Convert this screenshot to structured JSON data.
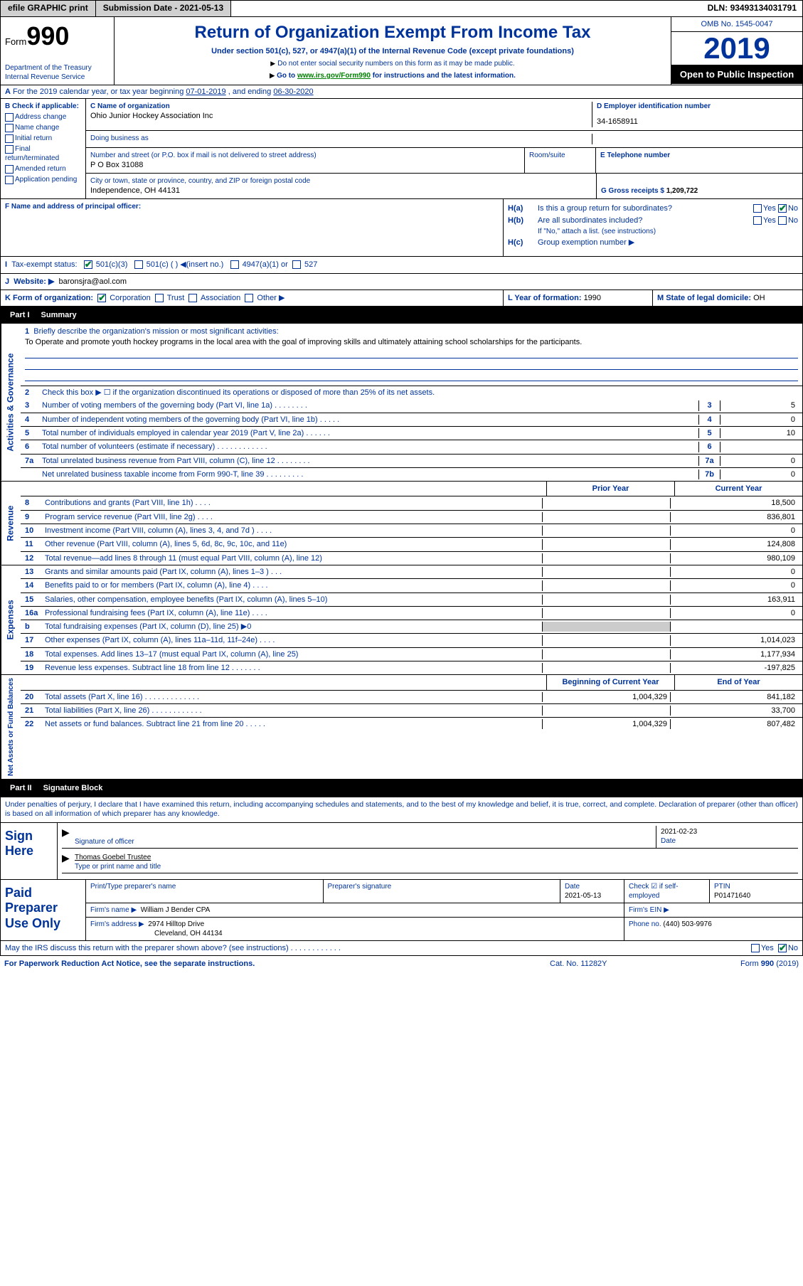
{
  "topbar": {
    "efile": "efile GRAPHIC",
    "print": "print",
    "submission_label": "Submission Date - ",
    "submission_date": "2021-05-13",
    "dln_label": "DLN: ",
    "dln": "93493134031791"
  },
  "header": {
    "form_label": "Form",
    "form_number": "990",
    "dept": "Department of the Treasury",
    "irs": "Internal Revenue Service",
    "title": "Return of Organization Exempt From Income Tax",
    "subtitle": "Under section 501(c), 527, or 4947(a)(1) of the Internal Revenue Code (except private foundations)",
    "note1": "Do not enter social security numbers on this form as it may be made public.",
    "note2_pre": "Go to ",
    "note2_link": "www.irs.gov/Form990",
    "note2_post": " for instructions and the latest information.",
    "omb": "OMB No. 1545-0047",
    "year": "2019",
    "opentopublic": "Open to Public Inspection"
  },
  "rowA": {
    "text": "For the 2019 calendar year, or tax year beginning ",
    "begin": "07-01-2019",
    "mid": " , and ending ",
    "end": "06-30-2020"
  },
  "colB": {
    "header": "B Check if applicable:",
    "items": [
      "Address change",
      "Name change",
      "Initial return",
      "Final return/terminated",
      "Amended return",
      "Application pending"
    ]
  },
  "colC": {
    "name_lbl": "C Name of organization",
    "name": "Ohio Junior Hockey Association Inc",
    "dba_lbl": "Doing business as",
    "addr_lbl": "Number and street (or P.O. box if mail is not delivered to street address)",
    "addr": "P O Box 31088",
    "room_lbl": "Room/suite",
    "city_lbl": "City or town, state or province, country, and ZIP or foreign postal code",
    "city": "Independence, OH  44131"
  },
  "colD": {
    "lbl": "D Employer identification number",
    "val": "34-1658911"
  },
  "colE": {
    "lbl": "E Telephone number",
    "val": ""
  },
  "colG": {
    "lbl": "G Gross receipts $ ",
    "val": "1,209,722"
  },
  "colF": {
    "lbl": "F  Name and address of principal officer:"
  },
  "colH": {
    "ha_lbl": "H(a)",
    "ha_txt": "Is this a group return for subordinates?",
    "hb_lbl": "H(b)",
    "hb_txt": "Are all subordinates included?",
    "hb_note": "If \"No,\" attach a list. (see instructions)",
    "hc_lbl": "H(c)",
    "hc_txt": "Group exemption number ▶"
  },
  "colI": {
    "lbl": "Tax-exempt status:",
    "o1": "501(c)(3)",
    "o2": "501(c) (  ) ◀(insert no.)",
    "o3": "4947(a)(1) or",
    "o4": "527"
  },
  "colJ": {
    "lbl": "Website: ▶",
    "val": "baronsjra@aol.com"
  },
  "colK": {
    "lbl": "K Form of organization:",
    "o1": "Corporation",
    "o2": "Trust",
    "o3": "Association",
    "o4": "Other ▶"
  },
  "colL": {
    "lbl": "L Year of formation: ",
    "val": "1990"
  },
  "colM": {
    "lbl": "M State of legal domicile: ",
    "val": "OH"
  },
  "part1": {
    "header_num": "Part I",
    "header_txt": "Summary",
    "sidebar1": "Activities & Governance",
    "sidebar2": "Revenue",
    "sidebar3": "Expenses",
    "sidebar4": "Net Assets or Fund Balances",
    "line1_lbl": "Briefly describe the organization's mission or most significant activities:",
    "line1_txt": "To Operate and promote youth hockey programs in the local area with the goal of improving skills and ultimately attaining school scholarships for the participants.",
    "line2": "Check this box ▶ ☐  if the organization discontinued its operations or disposed of more than 25% of its net assets.",
    "rows_ag": [
      {
        "n": "3",
        "t": "Number of voting members of the governing body (Part VI, line 1a)  .    .    .    .    .    .    .    .",
        "c": "3",
        "v": "5"
      },
      {
        "n": "4",
        "t": "Number of independent voting members of the governing body (Part VI, line 1b)  .    .    .    .    .",
        "c": "4",
        "v": "0"
      },
      {
        "n": "5",
        "t": "Total number of individuals employed in calendar year 2019 (Part V, line 2a)  .    .    .    .    .    .",
        "c": "5",
        "v": "10"
      },
      {
        "n": "6",
        "t": "Total number of volunteers (estimate if necessary)   .    .    .    .    .    .    .    .    .    .    .    .",
        "c": "6",
        "v": ""
      },
      {
        "n": "7a",
        "t": "Total unrelated business revenue from Part VIII, column (C), line 12  .    .    .    .    .    .    .    .",
        "c": "7a",
        "v": "0"
      },
      {
        "n": "",
        "t": "Net unrelated business taxable income from Form 990-T, line 39   .    .    .    .    .    .    .    .    .",
        "c": "7b",
        "v": "0"
      }
    ],
    "col_prior": "Prior Year",
    "col_current": "Current Year",
    "rows_rev": [
      {
        "n": "8",
        "t": "Contributions and grants (Part VIII, line 1h)   .    .    .    .",
        "p": "",
        "c": "18,500"
      },
      {
        "n": "9",
        "t": "Program service revenue (Part VIII, line 2g)   .    .    .    .",
        "p": "",
        "c": "836,801"
      },
      {
        "n": "10",
        "t": "Investment income (Part VIII, column (A), lines 3, 4, and 7d )   .    .    .    .",
        "p": "",
        "c": "0"
      },
      {
        "n": "11",
        "t": "Other revenue (Part VIII, column (A), lines 5, 6d, 8c, 9c, 10c, and 11e)",
        "p": "",
        "c": "124,808"
      },
      {
        "n": "12",
        "t": "Total revenue—add lines 8 through 11 (must equal Part VIII, column (A), line 12)",
        "p": "",
        "c": "980,109"
      }
    ],
    "rows_exp": [
      {
        "n": "13",
        "t": "Grants and similar amounts paid (Part IX, column (A), lines 1–3 )  .    .    .",
        "p": "",
        "c": "0"
      },
      {
        "n": "14",
        "t": "Benefits paid to or for members (Part IX, column (A), line 4)  .    .    .    .",
        "p": "",
        "c": "0"
      },
      {
        "n": "15",
        "t": "Salaries, other compensation, employee benefits (Part IX, column (A), lines 5–10)",
        "p": "",
        "c": "163,911"
      },
      {
        "n": "16a",
        "t": "Professional fundraising fees (Part IX, column (A), line 11e)  .    .    .    .",
        "p": "",
        "c": "0"
      },
      {
        "n": "b",
        "t": "Total fundraising expenses (Part IX, column (D), line 25) ▶0",
        "p": "shade",
        "c": "shade"
      },
      {
        "n": "17",
        "t": "Other expenses (Part IX, column (A), lines 11a–11d, 11f–24e)   .    .    .    .",
        "p": "",
        "c": "1,014,023"
      },
      {
        "n": "18",
        "t": "Total expenses. Add lines 13–17 (must equal Part IX, column (A), line 25)",
        "p": "",
        "c": "1,177,934"
      },
      {
        "n": "19",
        "t": "Revenue less expenses. Subtract line 18 from line 12 .    .    .    .    .    .    .",
        "p": "",
        "c": "-197,825"
      }
    ],
    "col_begin": "Beginning of Current Year",
    "col_end": "End of Year",
    "rows_net": [
      {
        "n": "20",
        "t": "Total assets (Part X, line 16)  .    .    .    .    .    .    .    .    .    .    .    .    .",
        "p": "1,004,329",
        "c": "841,182"
      },
      {
        "n": "21",
        "t": "Total liabilities (Part X, line 26)  .    .    .    .    .    .    .    .    .    .    .    .",
        "p": "",
        "c": "33,700"
      },
      {
        "n": "22",
        "t": "Net assets or fund balances. Subtract line 21 from line 20  .    .    .    .    .",
        "p": "1,004,329",
        "c": "807,482"
      }
    ]
  },
  "part2": {
    "header_num": "Part II",
    "header_txt": "Signature Block",
    "declaration": "Under penalties of perjury, I declare that I have examined this return, including accompanying schedules and statements, and to the best of my knowledge and belief, it is true, correct, and complete. Declaration of preparer (other than officer) is based on all information of which preparer has any knowledge.",
    "sign_here": "Sign Here",
    "sig_officer": "Signature of officer",
    "sig_date_lbl": "Date",
    "sig_date": "2021-02-23",
    "sig_name": "Thomas Goebel Trustee",
    "sig_name_lbl": "Type or print name and title",
    "paid": "Paid Preparer Use Only",
    "prep_name_lbl": "Print/Type preparer's name",
    "prep_sig_lbl": "Preparer's signature",
    "prep_date_lbl": "Date",
    "prep_date": "2021-05-13",
    "prep_check_lbl": "Check ☑ if self-employed",
    "ptin_lbl": "PTIN",
    "ptin": "P01471640",
    "firm_name_lbl": "Firm's name    ▶",
    "firm_name": "William J Bender CPA",
    "firm_ein_lbl": "Firm's EIN ▶",
    "firm_addr_lbl": "Firm's address ▶",
    "firm_addr1": "2974 Hilltop Drive",
    "firm_addr2": "Cleveland, OH  44134",
    "phone_lbl": "Phone no. ",
    "phone": "(440) 503-9976",
    "discuss": "May the IRS discuss this return with the preparer shown above? (see instructions)   .    .    .    .    .    .    .    .    .    .    .    ."
  },
  "footer": {
    "paperwork": "For Paperwork Reduction Act Notice, see the separate instructions.",
    "catno": "Cat. No. 11282Y",
    "formver": "Form 990 (2019)"
  },
  "yesno": {
    "yes": "Yes",
    "no": "No"
  }
}
